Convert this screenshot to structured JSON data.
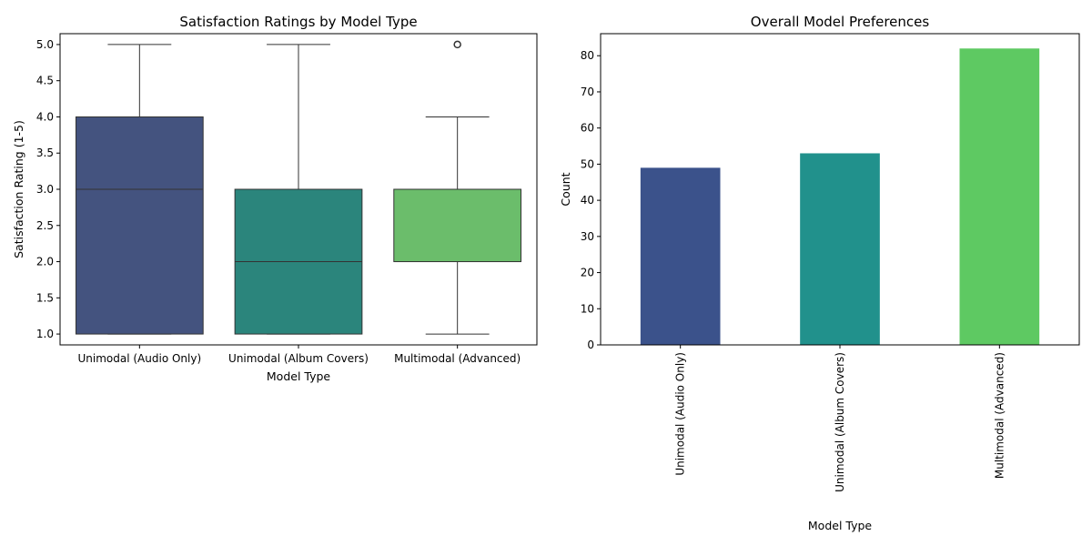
{
  "chart_data": [
    {
      "type": "box",
      "title": "Satisfaction Ratings by Model Type",
      "xlabel": "Model Type",
      "ylabel": "Satisfaction Rating (1-5)",
      "categories": [
        "Unimodal (Audio Only)",
        "Unimodal (Album Covers)",
        "Multimodal (Advanced)"
      ],
      "ylim": [
        0.85,
        5.15
      ],
      "yticks": [
        "1.0",
        "1.5",
        "2.0",
        "2.5",
        "3.0",
        "3.5",
        "4.0",
        "4.5",
        "5.0"
      ],
      "boxes": [
        {
          "whisker_low": 1,
          "q1": 1,
          "median": 3,
          "q3": 4,
          "whisker_high": 5,
          "outliers": []
        },
        {
          "whisker_low": 1,
          "q1": 1,
          "median": 2,
          "q3": 3,
          "whisker_high": 5,
          "outliers": []
        },
        {
          "whisker_low": 1,
          "q1": 2,
          "median": 3,
          "q3": 3,
          "whisker_high": 4,
          "outliers": [
            5
          ]
        }
      ],
      "colors": [
        "#44537f",
        "#2b857c",
        "#6bbd6b"
      ],
      "grid": false,
      "legend": "none"
    },
    {
      "type": "bar",
      "title": "Overall Model Preferences",
      "xlabel": "Model Type",
      "ylabel": "Count",
      "categories": [
        "Unimodal (Audio Only)",
        "Unimodal (Album Covers)",
        "Multimodal (Advanced)"
      ],
      "values": [
        49,
        53,
        82
      ],
      "ylim": [
        0,
        86.1
      ],
      "yticks": [
        "0",
        "10",
        "20",
        "30",
        "40",
        "50",
        "60",
        "70",
        "80"
      ],
      "colors": [
        "#3b528b",
        "#21918c",
        "#5ec962"
      ],
      "xtick_rotation": 90,
      "grid": false,
      "legend": "none"
    }
  ]
}
